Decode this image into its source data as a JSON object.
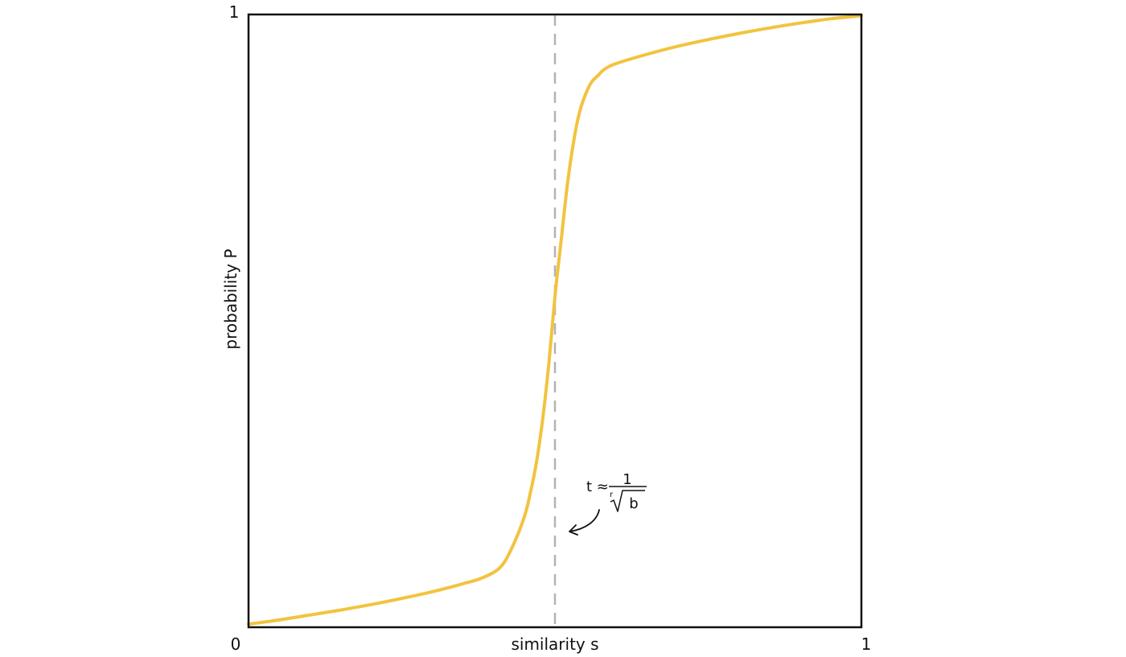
{
  "chart_data": {
    "type": "line",
    "title": "",
    "xlabel": "similarity s",
    "ylabel": "probability P",
    "xlim": [
      0,
      1
    ],
    "ylim": [
      0,
      1
    ],
    "x_ticks": [
      "0",
      "1"
    ],
    "y_ticks": [
      "1"
    ],
    "grid": false,
    "series": [
      {
        "color": "#f2c33f",
        "x": [
          0,
          0.05,
          0.1,
          0.15,
          0.2,
          0.25,
          0.3,
          0.35,
          0.38,
          0.41,
          0.43,
          0.45,
          0.46,
          0.47,
          0.48,
          0.49,
          0.5,
          0.51,
          0.52,
          0.53,
          0.54,
          0.55,
          0.56,
          0.57,
          0.58,
          0.6,
          0.65,
          0.7,
          0.75,
          0.8,
          0.85,
          0.9,
          0.95,
          1.0
        ],
        "y": [
          0.005,
          0.012,
          0.02,
          0.028,
          0.037,
          0.047,
          0.058,
          0.071,
          0.08,
          0.097,
          0.13,
          0.18,
          0.22,
          0.27,
          0.34,
          0.43,
          0.54,
          0.63,
          0.72,
          0.79,
          0.84,
          0.87,
          0.89,
          0.9,
          0.91,
          0.92,
          0.935,
          0.948,
          0.959,
          0.969,
          0.978,
          0.986,
          0.993,
          0.998
        ]
      }
    ],
    "threshold": {
      "x": 0.5,
      "color": "#b3b3b3",
      "label_prefix": "t ≈",
      "numerator": "1",
      "root_index": "r",
      "radicand": "b"
    }
  }
}
